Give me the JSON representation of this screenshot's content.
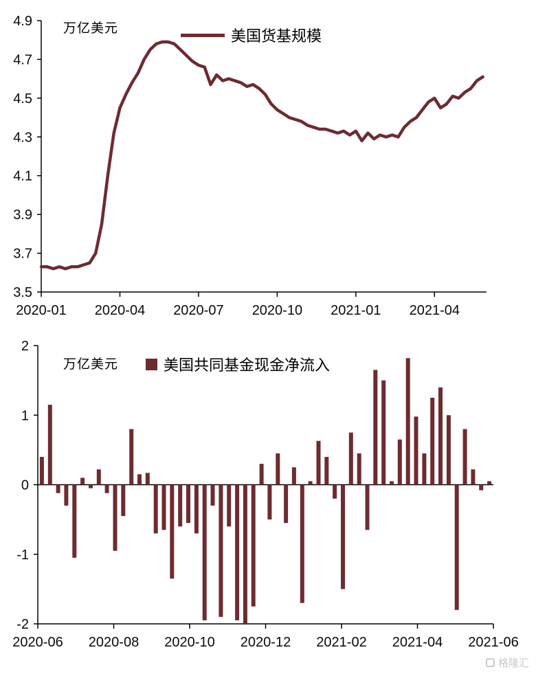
{
  "colors": {
    "series": "#6e2b30",
    "axis": "#000000",
    "watermark": "#c9c9cd"
  },
  "watermark": {
    "text": "格隆汇"
  },
  "chart_data": [
    {
      "type": "line",
      "title": "美国货基规模",
      "legend": "美国货基规模",
      "unit_label": "万亿美元",
      "ylabel": "万亿美元 (trillion USD)",
      "ylim": [
        3.5,
        4.9
      ],
      "yticks": [
        3.5,
        3.7,
        3.9,
        4.1,
        4.3,
        4.5,
        4.7,
        4.9
      ],
      "y_decimals": 1,
      "grid": false,
      "legend_position": "top-center",
      "x_domain": [
        0,
        73.6
      ],
      "x_step": 1,
      "xticks": [
        {
          "pos": 0,
          "label": "2020-01"
        },
        {
          "pos": 13,
          "label": "2020-04"
        },
        {
          "pos": 26,
          "label": "2020-07"
        },
        {
          "pos": 39,
          "label": "2020-10"
        },
        {
          "pos": 52,
          "label": "2021-01"
        },
        {
          "pos": 65,
          "label": "2021-04"
        }
      ],
      "x_unit": "weekly observations from 2020-01 to 2021-05",
      "values": [
        3.63,
        3.63,
        3.62,
        3.63,
        3.62,
        3.63,
        3.63,
        3.64,
        3.65,
        3.7,
        3.85,
        4.1,
        4.32,
        4.45,
        4.52,
        4.58,
        4.63,
        4.7,
        4.75,
        4.78,
        4.79,
        4.79,
        4.78,
        4.75,
        4.72,
        4.69,
        4.67,
        4.66,
        4.57,
        4.62,
        4.59,
        4.6,
        4.59,
        4.58,
        4.56,
        4.57,
        4.55,
        4.52,
        4.47,
        4.44,
        4.42,
        4.4,
        4.39,
        4.38,
        4.36,
        4.35,
        4.34,
        4.34,
        4.33,
        4.32,
        4.33,
        4.31,
        4.33,
        4.28,
        4.32,
        4.29,
        4.31,
        4.3,
        4.31,
        4.3,
        4.35,
        4.38,
        4.4,
        4.44,
        4.48,
        4.5,
        4.45,
        4.47,
        4.51,
        4.5,
        4.53,
        4.55,
        4.59,
        4.61
      ]
    },
    {
      "type": "bar",
      "title": "美国共同基金现金净流入",
      "legend": "美国共同基金现金净流入",
      "unit_label": "万亿美元",
      "ylabel": "万亿美元 (trillion USD)",
      "ylim": [
        -2,
        2
      ],
      "yticks": [
        -2,
        -1,
        0,
        1,
        2
      ],
      "y_decimals": 0,
      "grid": false,
      "legend_position": "top-center",
      "x_domain": [
        0,
        56
      ],
      "xticks": [
        {
          "pos": 0,
          "label": "2020-06"
        },
        {
          "pos": 9.33,
          "label": "2020-08"
        },
        {
          "pos": 18.67,
          "label": "2020-10"
        },
        {
          "pos": 28,
          "label": "2020-12"
        },
        {
          "pos": 37.33,
          "label": "2021-02"
        },
        {
          "pos": 46.67,
          "label": "2021-04"
        },
        {
          "pos": 56,
          "label": "2021-06"
        }
      ],
      "x_unit": "weekly observations from 2020-06 to 2021-06",
      "values": [
        0.4,
        1.15,
        -0.12,
        -0.3,
        -1.05,
        0.1,
        -0.05,
        0.22,
        -0.12,
        -0.95,
        -0.45,
        0.8,
        0.15,
        0.17,
        -0.7,
        -0.65,
        -1.35,
        -0.6,
        -0.55,
        -0.7,
        -1.95,
        -0.3,
        -1.9,
        -0.6,
        -1.95,
        -2.0,
        -1.75,
        0.3,
        -0.5,
        0.45,
        -0.55,
        0.25,
        -1.7,
        0.05,
        0.63,
        0.4,
        -0.2,
        -1.5,
        0.75,
        0.45,
        -0.65,
        1.65,
        1.5,
        0.05,
        0.65,
        1.82,
        0.98,
        0.45,
        1.25,
        1.4,
        1.0,
        -1.8,
        0.8,
        0.22,
        -0.08,
        0.05
      ]
    }
  ]
}
